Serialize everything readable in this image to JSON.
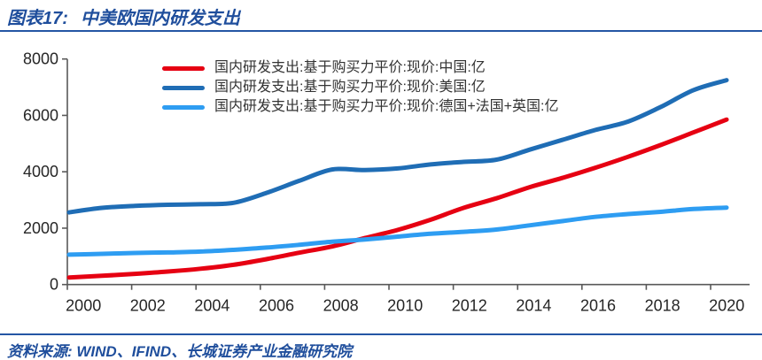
{
  "figure": {
    "label": "图表17:",
    "title": "中美欧国内研发支出",
    "source": "资料来源: WIND、IFIND、长城证券产业金融研究院"
  },
  "colors": {
    "china_line": "#e60012",
    "us_line": "#1f6db5",
    "europe_line": "#2e9df2",
    "accent_blue": "#1f4e9c",
    "rule_blue": "#2456a4",
    "axis": "#595959",
    "tick_text": "#262626"
  },
  "chart_data": {
    "type": "line",
    "x": [
      2000,
      2001,
      2002,
      2003,
      2004,
      2005,
      2006,
      2007,
      2008,
      2009,
      2010,
      2011,
      2012,
      2013,
      2014,
      2015,
      2016,
      2017,
      2018,
      2019,
      2020
    ],
    "series": [
      {
        "name": "国内研发支出:基于购买力平价:现价:中国:亿",
        "color": "#e60012",
        "values": [
          250,
          310,
          380,
          460,
          560,
          700,
          900,
          1130,
          1350,
          1650,
          1940,
          2300,
          2720,
          3060,
          3450,
          3780,
          4140,
          4530,
          4950,
          5400,
          5850
        ]
      },
      {
        "name": "国内研发支出:基于购买力平价:现价:美国:亿",
        "color": "#1f6db5",
        "values": [
          2560,
          2720,
          2790,
          2830,
          2850,
          2900,
          3250,
          3680,
          4080,
          4060,
          4120,
          4260,
          4350,
          4430,
          4780,
          5130,
          5480,
          5780,
          6300,
          6900,
          7250
        ]
      },
      {
        "name": "国内研发支出:基于购买力平价:现价:德国+法国+英国:亿",
        "color": "#2e9df2",
        "values": [
          1060,
          1090,
          1120,
          1140,
          1170,
          1230,
          1310,
          1410,
          1520,
          1600,
          1700,
          1800,
          1870,
          1950,
          2100,
          2250,
          2400,
          2500,
          2580,
          2680,
          2730
        ]
      }
    ],
    "ylim": [
      0,
      8000
    ],
    "yticks": [
      0,
      2000,
      4000,
      6000,
      8000
    ],
    "xtick_labels": [
      "2000",
      "2002",
      "2004",
      "2006",
      "2008",
      "2010",
      "2012",
      "2014",
      "2016",
      "2018",
      "2020"
    ],
    "grid": false,
    "legend_position": "top-inside-left"
  }
}
